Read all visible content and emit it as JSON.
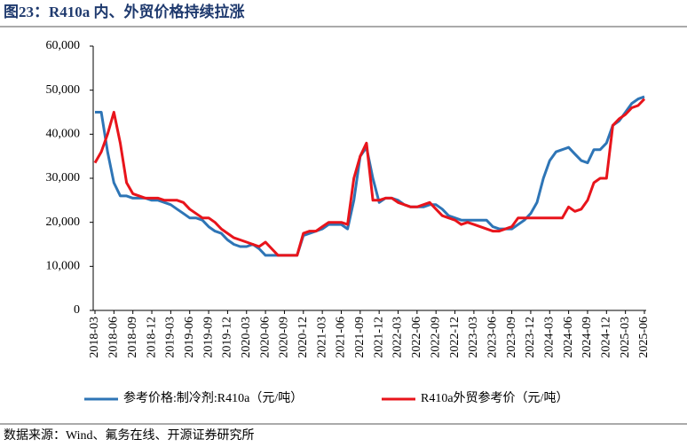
{
  "chart_data": {
    "type": "line",
    "title": "图23：R410a 内、外贸价格持续拉涨",
    "source": "数据来源：Wind、氟务在线、开源证券研究所",
    "categories": [
      "2018-03",
      null,
      null,
      "2018-06",
      null,
      null,
      "2018-09",
      null,
      null,
      "2018-12",
      null,
      null,
      "2019-03",
      null,
      null,
      "2019-06",
      null,
      null,
      "2019-09",
      null,
      null,
      "2019-12",
      null,
      null,
      "2020-03",
      null,
      null,
      "2020-06",
      null,
      null,
      "2020-09",
      null,
      null,
      "2020-12",
      null,
      null,
      "2021-03",
      null,
      null,
      "2021-06",
      null,
      null,
      "2021-09",
      null,
      null,
      "2021-12",
      null,
      null,
      "2022-03",
      null,
      null,
      "2022-06",
      null,
      null,
      "2022-09",
      null,
      null,
      "2022-12",
      null,
      null,
      "2023-03",
      null,
      null,
      "2023-06",
      null,
      null,
      "2023-09",
      null,
      null,
      "2023-12",
      null,
      null,
      "2024-03",
      null,
      null,
      "2024-06",
      null,
      null,
      "2024-09",
      null,
      null,
      "2024-12",
      null,
      null,
      "2025-03",
      null,
      null,
      "2025-06"
    ],
    "series": [
      {
        "name": "参考价格:制冷剂:R410a（元/吨）",
        "color": "#2e75b6",
        "values": [
          45000,
          45000,
          36000,
          29000,
          26000,
          26000,
          25500,
          25500,
          25500,
          25000,
          25000,
          24500,
          24000,
          23000,
          22000,
          21000,
          21000,
          20500,
          19000,
          18000,
          17500,
          16000,
          15000,
          14500,
          14500,
          15000,
          14000,
          12500,
          12500,
          12500,
          12500,
          12500,
          12500,
          17000,
          17500,
          18000,
          18500,
          19500,
          19500,
          19500,
          18500,
          25000,
          35000,
          37000,
          30000,
          24500,
          25500,
          25500,
          25000,
          24000,
          23500,
          23500,
          23500,
          24000,
          24000,
          23000,
          21500,
          21000,
          20500,
          20500,
          20500,
          20500,
          20500,
          19000,
          18500,
          18500,
          18500,
          19500,
          20500,
          22000,
          24500,
          30000,
          34000,
          36000,
          36500,
          37000,
          35500,
          34000,
          33500,
          36500,
          36500,
          38000,
          42000,
          43000,
          45000,
          47000,
          48000,
          48500
        ]
      },
      {
        "name": "R410a外贸参考价（元/吨）",
        "color": "#e8141b",
        "values": [
          33500,
          36000,
          40000,
          45000,
          38000,
          29000,
          26500,
          26000,
          25500,
          25500,
          25500,
          25000,
          25000,
          25000,
          24500,
          23000,
          22000,
          21000,
          21000,
          20000,
          18500,
          17500,
          16500,
          16000,
          15500,
          15000,
          14500,
          15500,
          14000,
          12500,
          12500,
          12500,
          12500,
          17500,
          18000,
          18000,
          19000,
          20000,
          20000,
          20000,
          19500,
          30000,
          35000,
          38000,
          25000,
          25000,
          25500,
          25500,
          24500,
          24000,
          23500,
          23500,
          24000,
          24500,
          23000,
          21500,
          21000,
          20500,
          19500,
          20000,
          19500,
          19000,
          18500,
          18000,
          18000,
          18500,
          19000,
          21000,
          21000,
          21000,
          21000,
          21000,
          21000,
          21000,
          21000,
          23500,
          22500,
          23000,
          25000,
          29000,
          30000,
          30000,
          42000,
          43500,
          44500,
          46000,
          46500,
          48000
        ]
      }
    ],
    "ylim": [
      0,
      60000
    ],
    "yticks": [
      0,
      {
        "value": 10000,
        "label": "10,000"
      },
      {
        "value": 20000,
        "label": "20,000"
      },
      {
        "value": 30000,
        "label": "30,000"
      },
      {
        "value": 40000,
        "label": "40,000"
      },
      {
        "value": 50000,
        "label": "50,000"
      },
      {
        "value": 60000,
        "label": "60,000"
      }
    ],
    "grid": false
  }
}
